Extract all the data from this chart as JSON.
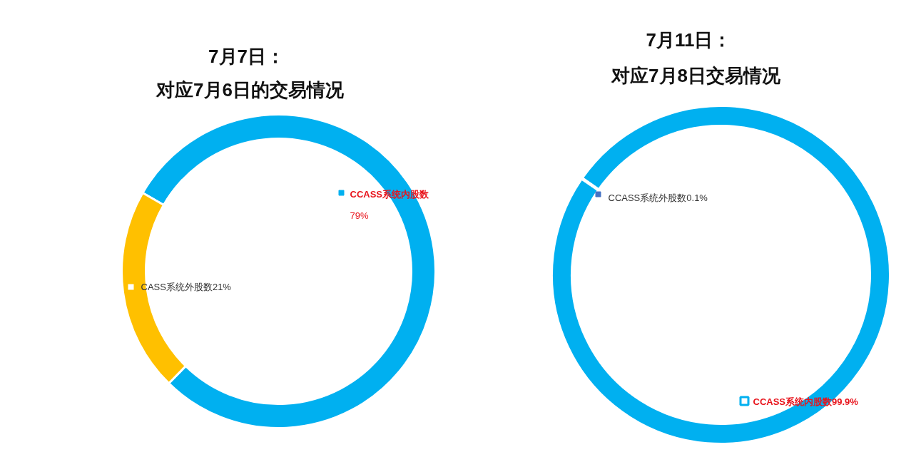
{
  "chart_data": [
    {
      "type": "donut",
      "title": "7月7日：",
      "subtitle": "对应7月6日的交易情况",
      "categories": [
        "CCASS系统内股数",
        "CASS系统外股数"
      ],
      "values": [
        79,
        21
      ],
      "colors": [
        "#00b0f0",
        "#ffc000"
      ],
      "value_labels": [
        "79%",
        "21%"
      ],
      "legend": "center"
    },
    {
      "type": "donut",
      "title": "7月11日：",
      "subtitle": "对应7月8日交易情况",
      "categories": [
        "CCASS系统内股数",
        "CCASS系统外股数"
      ],
      "values": [
        99.9,
        0.1
      ],
      "colors": [
        "#00b0f0",
        "#4472c4"
      ],
      "value_labels": [
        "99.9%",
        "0.1%"
      ],
      "legend": "center"
    }
  ]
}
